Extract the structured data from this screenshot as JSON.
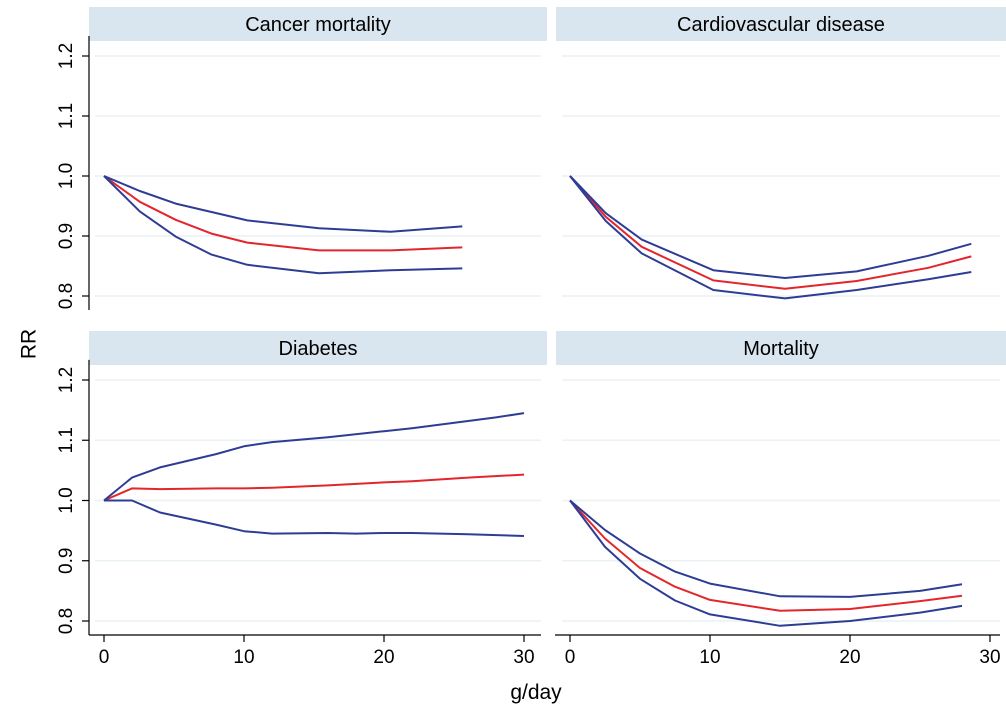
{
  "colors": {
    "strip_bg": "#d9e6ef",
    "gridline": "#eaf2f3",
    "estimate": "#e3262c",
    "ci": "#2e3d94",
    "axis": "#000000"
  },
  "axes": {
    "xlabel": "g/day",
    "ylabel": "RR"
  },
  "chart_data": [
    {
      "type": "line",
      "title": "Cancer mortality",
      "xlim": [
        0,
        30
      ],
      "ylim": [
        0.78,
        1.23
      ],
      "xticks": [
        0,
        10,
        20,
        30
      ],
      "yticks": [
        0.8,
        0.9,
        1.0,
        1.1,
        1.2
      ],
      "xtick_labels": [
        "0",
        "10",
        "20",
        "30"
      ],
      "ytick_labels": [
        "0.8",
        "0.9",
        "1.0",
        "1.1",
        "1.2"
      ],
      "show_x_axis": false,
      "show_y_axis": true,
      "grid": true,
      "series": [
        {
          "role": "estimate",
          "x": [
            0,
            2.5,
            5,
            7.5,
            10,
            15,
            20,
            25
          ],
          "y": [
            1.0,
            0.957,
            0.927,
            0.904,
            0.889,
            0.876,
            0.876,
            0.881
          ]
        },
        {
          "role": "upper",
          "x": [
            0,
            2.5,
            5,
            7.5,
            10,
            15,
            20,
            25
          ],
          "y": [
            1.0,
            0.975,
            0.954,
            0.94,
            0.926,
            0.913,
            0.907,
            0.916
          ]
        },
        {
          "role": "lower",
          "x": [
            0,
            2.5,
            5,
            7.5,
            10,
            15,
            20,
            25
          ],
          "y": [
            1.0,
            0.941,
            0.899,
            0.869,
            0.852,
            0.838,
            0.843,
            0.846
          ]
        }
      ]
    },
    {
      "type": "line",
      "title": "Cardiovascular disease",
      "xlim": [
        0,
        30
      ],
      "ylim": [
        0.78,
        1.23
      ],
      "xticks": [
        0,
        10,
        20,
        30
      ],
      "yticks": [
        0.8,
        0.9,
        1.0,
        1.1,
        1.2
      ],
      "xtick_labels": [
        "0",
        "10",
        "20",
        "30"
      ],
      "ytick_labels": [
        "0.8",
        "0.9",
        "1.0",
        "1.1",
        "1.2"
      ],
      "show_x_axis": false,
      "show_y_axis": false,
      "grid": true,
      "series": [
        {
          "role": "estimate",
          "x": [
            0,
            2.5,
            5,
            10,
            15,
            20,
            25,
            28
          ],
          "y": [
            1.0,
            0.932,
            0.882,
            0.826,
            0.812,
            0.825,
            0.847,
            0.866
          ]
        },
        {
          "role": "upper",
          "x": [
            0,
            2.5,
            5,
            10,
            15,
            20,
            25,
            28
          ],
          "y": [
            1.0,
            0.938,
            0.894,
            0.843,
            0.83,
            0.841,
            0.867,
            0.887
          ]
        },
        {
          "role": "lower",
          "x": [
            0,
            2.5,
            5,
            10,
            15,
            20,
            25,
            28
          ],
          "y": [
            1.0,
            0.925,
            0.871,
            0.81,
            0.796,
            0.81,
            0.828,
            0.84
          ]
        }
      ]
    },
    {
      "type": "line",
      "title": "Diabetes",
      "xlim": [
        0,
        30
      ],
      "ylim": [
        0.78,
        1.23
      ],
      "xticks": [
        0,
        10,
        20,
        30
      ],
      "yticks": [
        0.8,
        0.9,
        1.0,
        1.1,
        1.2
      ],
      "xtick_labels": [
        "0",
        "10",
        "20",
        "30"
      ],
      "ytick_labels": [
        "0.8",
        "0.9",
        "1.0",
        "1.1",
        "1.2"
      ],
      "show_x_axis": true,
      "show_y_axis": true,
      "grid": true,
      "series": [
        {
          "role": "estimate",
          "x": [
            0,
            2,
            4,
            8,
            10,
            12,
            16,
            20,
            22,
            26,
            30
          ],
          "y": [
            1.0,
            1.02,
            1.019,
            1.02,
            1.02,
            1.021,
            1.025,
            1.03,
            1.032,
            1.038,
            1.043
          ]
        },
        {
          "role": "upper",
          "x": [
            0,
            2,
            4,
            8,
            10,
            12,
            16,
            20,
            22,
            26,
            28,
            30
          ],
          "y": [
            1.0,
            1.038,
            1.055,
            1.077,
            1.09,
            1.097,
            1.105,
            1.115,
            1.12,
            1.132,
            1.138,
            1.145
          ]
        },
        {
          "role": "lower",
          "x": [
            0,
            2,
            4,
            8,
            10,
            12,
            16,
            18,
            20,
            22,
            26,
            30
          ],
          "y": [
            1.0,
            1.0,
            0.98,
            0.96,
            0.949,
            0.945,
            0.946,
            0.945,
            0.946,
            0.946,
            0.944,
            0.941
          ]
        }
      ]
    },
    {
      "type": "line",
      "title": "Mortality",
      "xlim": [
        0,
        30
      ],
      "ylim": [
        0.78,
        1.23
      ],
      "xticks": [
        0,
        10,
        20,
        30
      ],
      "yticks": [
        0.8,
        0.9,
        1.0,
        1.1,
        1.2
      ],
      "xtick_labels": [
        "0",
        "10",
        "20",
        "30"
      ],
      "ytick_labels": [
        "0.8",
        "0.9",
        "1.0",
        "1.1",
        "1.2"
      ],
      "show_x_axis": true,
      "show_y_axis": false,
      "grid": true,
      "series": [
        {
          "role": "estimate",
          "x": [
            0,
            2.5,
            5,
            7.5,
            10,
            15,
            20,
            25,
            28
          ],
          "y": [
            1.0,
            0.937,
            0.888,
            0.857,
            0.835,
            0.817,
            0.82,
            0.833,
            0.842
          ]
        },
        {
          "role": "upper",
          "x": [
            0,
            2.5,
            5,
            7.5,
            10,
            15,
            20,
            25,
            28
          ],
          "y": [
            1.0,
            0.951,
            0.912,
            0.882,
            0.862,
            0.841,
            0.84,
            0.85,
            0.861
          ]
        },
        {
          "role": "lower",
          "x": [
            0,
            2.5,
            5,
            7.5,
            10,
            15,
            20,
            25,
            28
          ],
          "y": [
            1.0,
            0.923,
            0.87,
            0.834,
            0.811,
            0.792,
            0.8,
            0.814,
            0.825
          ]
        }
      ]
    }
  ]
}
